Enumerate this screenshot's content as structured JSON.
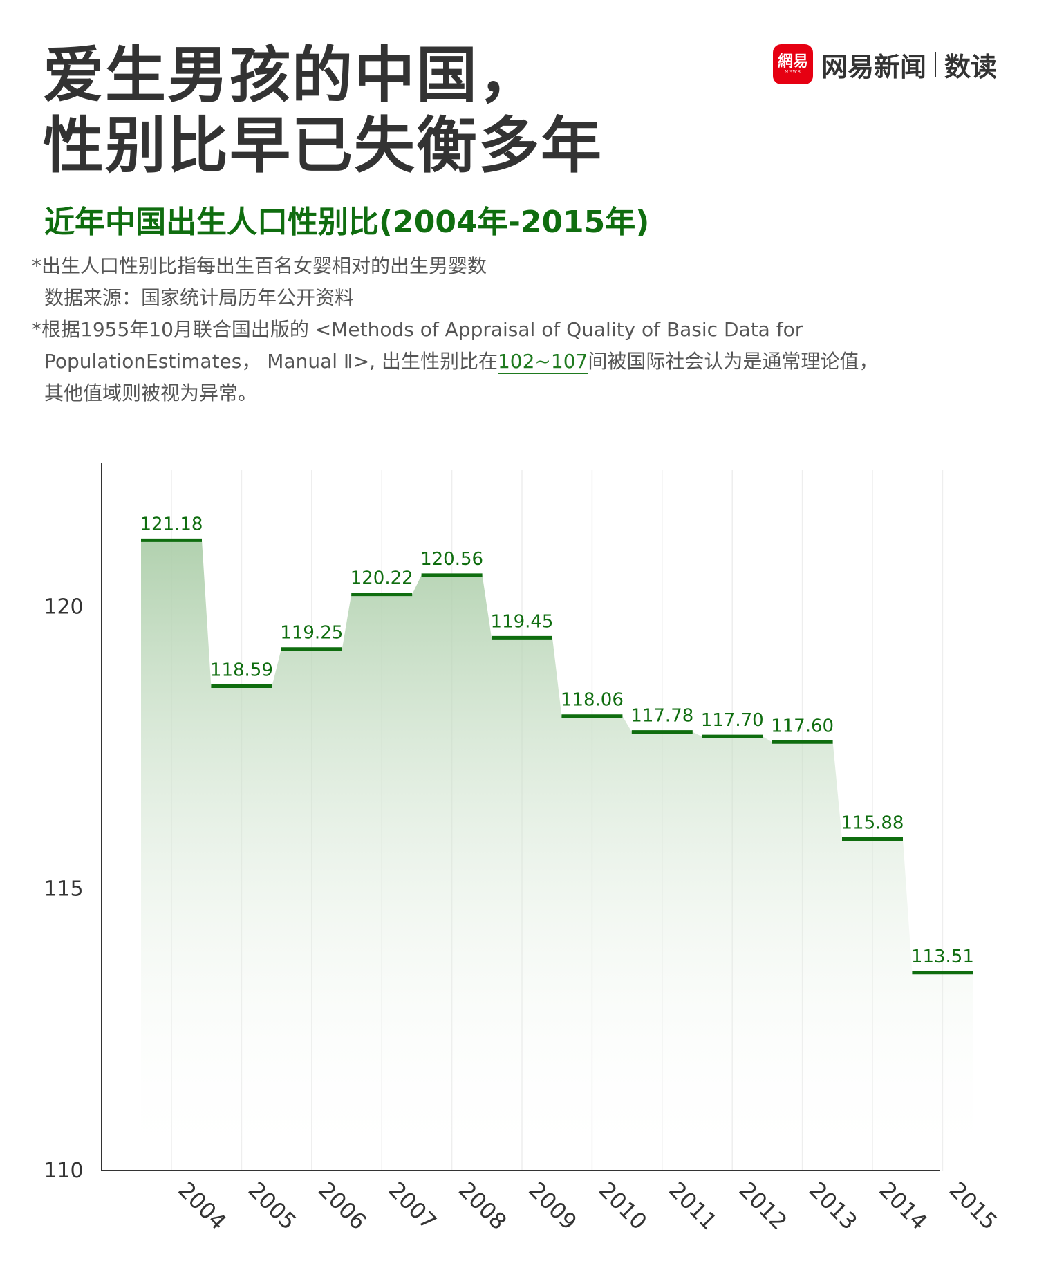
{
  "header": {
    "title_line1": "爱生男孩的中国，",
    "title_line2": "性别比早已失衡多年",
    "brand_logo_text": "網易",
    "brand_logo_sub": "NEWS",
    "brand_name": "网易新闻",
    "brand_suffix": "数读"
  },
  "subtitle": "近年中国出生人口性别比(2004年-2015年)",
  "notes": {
    "line1": "*出生人口性别比指每出生百名女婴相对的出生男婴数",
    "line2": "数据来源：国家统计局历年公开资料",
    "line3": "*根据1955年10月联合国出版的 <Methods of Appraisal of Quality of Basic Data for",
    "line4_a": "PopulationEstimates， Manual Ⅱ>, 出生性别比在",
    "line4_highlight": "102~107",
    "line4_b": "间被国际社会认为是通常理论值，",
    "line5": "其他值域则被视为异常。"
  },
  "colors": {
    "accent": "#0f6d0f",
    "area_top": "#a9cca6",
    "area_bottom": "#ffffff",
    "axis": "#333333",
    "grid": "#eeeeee"
  },
  "chart_data": {
    "type": "area",
    "categories": [
      "2004",
      "2005",
      "2006",
      "2007",
      "2008",
      "2009",
      "2010",
      "2011",
      "2012",
      "2013",
      "2014",
      "2015"
    ],
    "values": [
      121.18,
      118.59,
      119.25,
      120.22,
      120.56,
      119.45,
      118.06,
      117.78,
      117.7,
      117.6,
      115.88,
      113.51
    ],
    "value_labels": [
      "121.18",
      "118.59",
      "119.25",
      "120.22",
      "120.56",
      "119.45",
      "118.06",
      "117.78",
      "117.70",
      "117.60",
      "115.88",
      "113.51"
    ],
    "yticks": [
      "110",
      "115",
      "120"
    ],
    "ylim": [
      110,
      122.3
    ],
    "title": "近年中国出生人口性别比(2004年-2015年)",
    "xlabel": "",
    "ylabel": "",
    "grid": true
  }
}
